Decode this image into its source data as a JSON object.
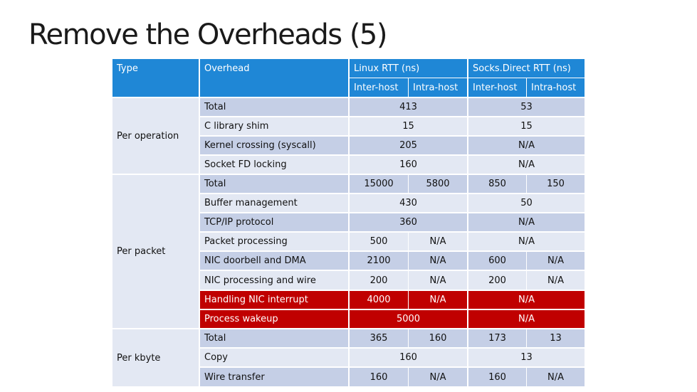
{
  "title": "Remove the Overheads (5)",
  "header": {
    "type": "Type",
    "overhead": "Overhead",
    "linux": "Linux RTT (ns)",
    "socks": "Socks.Direct RTT (ns)",
    "inter_host": "Inter-host",
    "intra_host": "Intra-host"
  },
  "categories": {
    "per_operation": "Per operation",
    "per_packet": "Per packet",
    "per_kbyte": "Per kbyte"
  },
  "rows": {
    "op_total": {
      "label": "Total",
      "linux": "413",
      "socks": "53"
    },
    "c_lib": {
      "label": "C library shim",
      "linux": "15",
      "socks": "15"
    },
    "kernel": {
      "label": "Kernel crossing (syscall)",
      "linux": "205",
      "socks": "N/A"
    },
    "socket_fd": {
      "label": "Socket FD locking",
      "linux": "160",
      "socks": "N/A"
    },
    "pkt_total": {
      "label": "Total",
      "linux_inter": "15000",
      "linux_intra": "5800",
      "socks_inter": "850",
      "socks_intra": "150"
    },
    "buffer": {
      "label": "Buffer management",
      "linux": "430",
      "socks": "50"
    },
    "tcpip": {
      "label": "TCP/IP protocol",
      "linux": "360",
      "socks": "N/A"
    },
    "pkt_proc": {
      "label": "Packet processing",
      "linux_inter": "500",
      "linux_intra": "N/A",
      "socks": "N/A"
    },
    "nic_door": {
      "label": "NIC doorbell and DMA",
      "linux_inter": "2100",
      "linux_intra": "N/A",
      "socks_inter": "600",
      "socks_intra": "N/A"
    },
    "nic_wire": {
      "label": "NIC processing and wire",
      "linux_inter": "200",
      "linux_intra": "N/A",
      "socks_inter": "200",
      "socks_intra": "N/A"
    },
    "nic_irq": {
      "label": "Handling NIC interrupt",
      "linux_inter": "4000",
      "linux_intra": "N/A",
      "socks": "N/A"
    },
    "wakeup": {
      "label": "Process wakeup",
      "linux": "5000",
      "socks": "N/A"
    },
    "kb_total": {
      "label": "Total",
      "linux_inter": "365",
      "linux_intra": "160",
      "socks_inter": "173",
      "socks_intra": "13"
    },
    "copy": {
      "label": "Copy",
      "linux": "160",
      "socks": "13"
    },
    "wire": {
      "label": "Wire transfer",
      "linux_inter": "160",
      "linux_intra": "N/A",
      "socks_inter": "160",
      "socks_intra": "N/A"
    }
  },
  "colors": {
    "header_blue": "#1f87d6",
    "row_dark": "#c5cfe6",
    "row_light": "#e3e8f3",
    "highlight_red": "#c00000"
  }
}
